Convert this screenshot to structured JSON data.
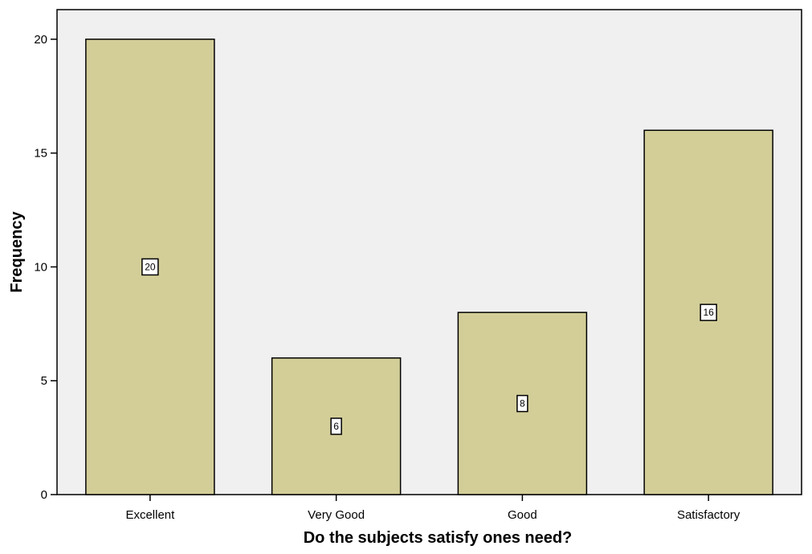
{
  "chart_data": {
    "type": "bar",
    "title": "",
    "xlabel": "Do the subjects satisfy ones need?",
    "ylabel": "Frequency",
    "categories": [
      "Excellent",
      "Very Good",
      "Good",
      "Satisfactory"
    ],
    "values": [
      20,
      6,
      8,
      16
    ],
    "data_labels": [
      "20",
      "6",
      "8",
      "16"
    ],
    "ylim": [
      0,
      21.3
    ],
    "yticks": [
      0,
      5,
      10,
      15,
      20
    ],
    "ytick_labels": [
      "0",
      "5",
      "10",
      "15",
      "20"
    ],
    "grid": false,
    "legend": "none",
    "colors": {
      "plot_background": "#f0f0f0",
      "bar_fill": "#d3ce98",
      "bar_stroke": "#000000",
      "label_box_fill": "#ffffff"
    }
  }
}
